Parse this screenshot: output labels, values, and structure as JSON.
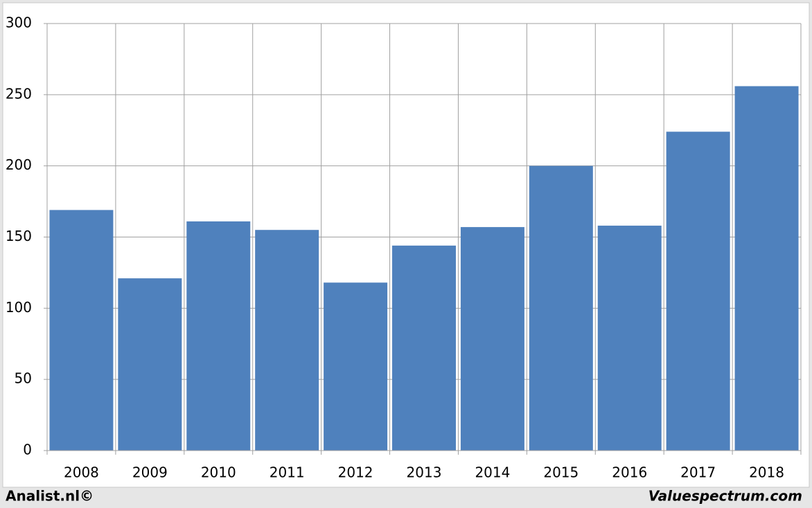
{
  "chart_data": {
    "type": "bar",
    "categories": [
      "2008",
      "2009",
      "2010",
      "2011",
      "2012",
      "2013",
      "2014",
      "2015",
      "2016",
      "2017",
      "2018"
    ],
    "values": [
      169,
      121,
      161,
      155,
      118,
      144,
      157,
      200,
      158,
      224,
      256
    ],
    "color": "#4f81bd",
    "ylim": [
      0,
      300
    ],
    "yticks": [
      0,
      50,
      100,
      150,
      200,
      250,
      300
    ],
    "grid": true,
    "footer_left": "Analist.nl©",
    "footer_right": "Valuespectrum.com"
  }
}
